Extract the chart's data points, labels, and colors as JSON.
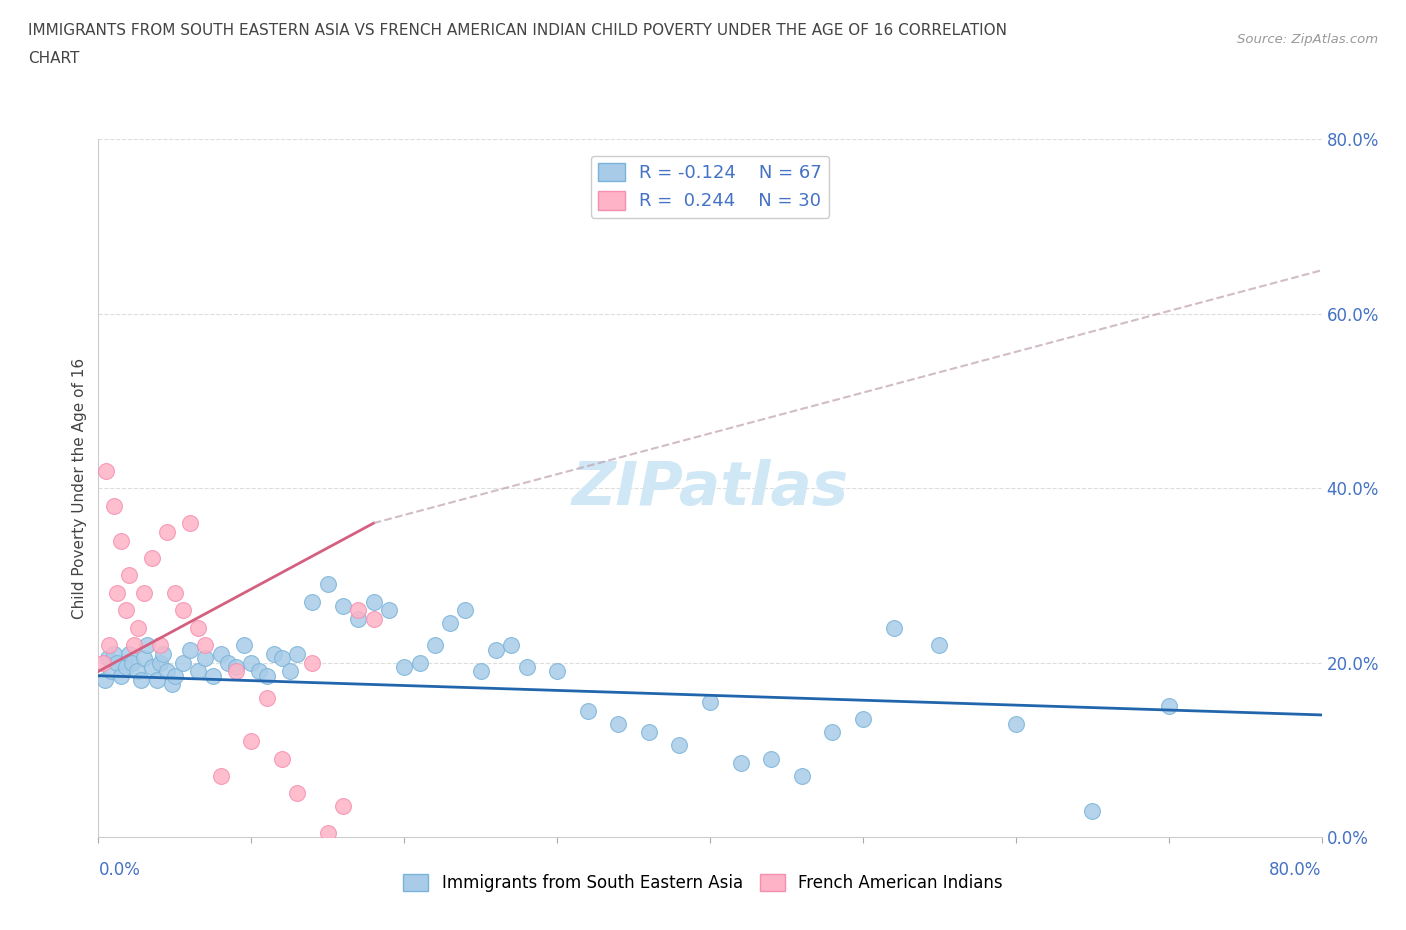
{
  "title_line1": "IMMIGRANTS FROM SOUTH EASTERN ASIA VS FRENCH AMERICAN INDIAN CHILD POVERTY UNDER THE AGE OF 16 CORRELATION",
  "title_line2": "CHART",
  "source": "Source: ZipAtlas.com",
  "ylabel": "Child Poverty Under the Age of 16",
  "blue_R": -0.124,
  "blue_N": 67,
  "pink_R": 0.244,
  "pink_N": 30,
  "blue_color": "#a8cce8",
  "blue_edge_color": "#7ab3d9",
  "blue_line_color": "#2166ac",
  "pink_color": "#ffb3c6",
  "pink_edge_color": "#f48fb1",
  "pink_line_color": "#d46080",
  "pink_dash_color": "#c0a0b0",
  "watermark_color": "#d0e8f5",
  "tick_label_color": "#4472c4",
  "grid_color": "#dddddd",
  "title_color": "#444444",
  "source_color": "#999999",
  "ylabel_color": "#444444",
  "blue_scatter_x": [
    0.4,
    0.6,
    0.8,
    1.0,
    1.2,
    1.5,
    1.8,
    2.0,
    2.2,
    2.5,
    2.8,
    3.0,
    3.2,
    3.5,
    3.8,
    4.0,
    4.2,
    4.5,
    4.8,
    5.0,
    5.5,
    6.0,
    6.5,
    7.0,
    7.5,
    8.0,
    8.5,
    9.0,
    9.5,
    10.0,
    10.5,
    11.0,
    11.5,
    12.0,
    12.5,
    13.0,
    14.0,
    15.0,
    16.0,
    17.0,
    18.0,
    19.0,
    20.0,
    21.0,
    22.0,
    23.0,
    24.0,
    25.0,
    26.0,
    27.0,
    28.0,
    30.0,
    32.0,
    34.0,
    36.0,
    38.0,
    40.0,
    42.0,
    44.0,
    46.0,
    48.0,
    50.0,
    52.0,
    55.0,
    60.0,
    65.0,
    70.0
  ],
  "blue_scatter_y": [
    18.0,
    20.5,
    19.0,
    21.0,
    20.0,
    18.5,
    19.5,
    21.0,
    20.0,
    19.0,
    18.0,
    20.5,
    22.0,
    19.5,
    18.0,
    20.0,
    21.0,
    19.0,
    17.5,
    18.5,
    20.0,
    21.5,
    19.0,
    20.5,
    18.5,
    21.0,
    20.0,
    19.5,
    22.0,
    20.0,
    19.0,
    18.5,
    21.0,
    20.5,
    19.0,
    21.0,
    27.0,
    29.0,
    26.5,
    25.0,
    27.0,
    26.0,
    19.5,
    20.0,
    22.0,
    24.5,
    26.0,
    19.0,
    21.5,
    22.0,
    19.5,
    19.0,
    14.5,
    13.0,
    12.0,
    10.5,
    15.5,
    8.5,
    9.0,
    7.0,
    12.0,
    13.5,
    24.0,
    22.0,
    13.0,
    3.0,
    15.0
  ],
  "pink_scatter_x": [
    0.3,
    0.5,
    0.7,
    1.0,
    1.2,
    1.5,
    1.8,
    2.0,
    2.3,
    2.6,
    3.0,
    3.5,
    4.0,
    4.5,
    5.0,
    5.5,
    6.0,
    6.5,
    7.0,
    8.0,
    9.0,
    10.0,
    11.0,
    12.0,
    13.0,
    14.0,
    15.0,
    16.0,
    17.0,
    18.0
  ],
  "pink_scatter_y": [
    20.0,
    42.0,
    22.0,
    38.0,
    28.0,
    34.0,
    26.0,
    30.0,
    22.0,
    24.0,
    28.0,
    32.0,
    22.0,
    35.0,
    28.0,
    26.0,
    36.0,
    24.0,
    22.0,
    7.0,
    19.0,
    11.0,
    16.0,
    9.0,
    5.0,
    20.0,
    0.5,
    3.5,
    26.0,
    25.0
  ],
  "blue_line_x0": 0,
  "blue_line_x1": 80,
  "blue_line_y0": 18.5,
  "blue_line_y1": 14.0,
  "pink_solid_x0": 0,
  "pink_solid_x1": 18,
  "pink_solid_y0": 19.0,
  "pink_solid_y1": 36.0,
  "pink_dash_x0": 18,
  "pink_dash_x1": 80,
  "pink_dash_y0": 36.0,
  "pink_dash_y1": 65.0,
  "xmin": 0,
  "xmax": 80,
  "ymin": 0,
  "ymax": 80,
  "yticks": [
    0,
    20,
    40,
    60,
    80
  ],
  "xticks_minor": [
    0,
    10,
    20,
    30,
    40,
    50,
    60,
    70,
    80
  ],
  "legend_label_blue": "R = -0.124    N = 67",
  "legend_label_pink": "R =  0.244    N = 30",
  "bottom_label_blue": "Immigrants from South Eastern Asia",
  "bottom_label_pink": "French American Indians",
  "watermark": "ZIPatlas"
}
